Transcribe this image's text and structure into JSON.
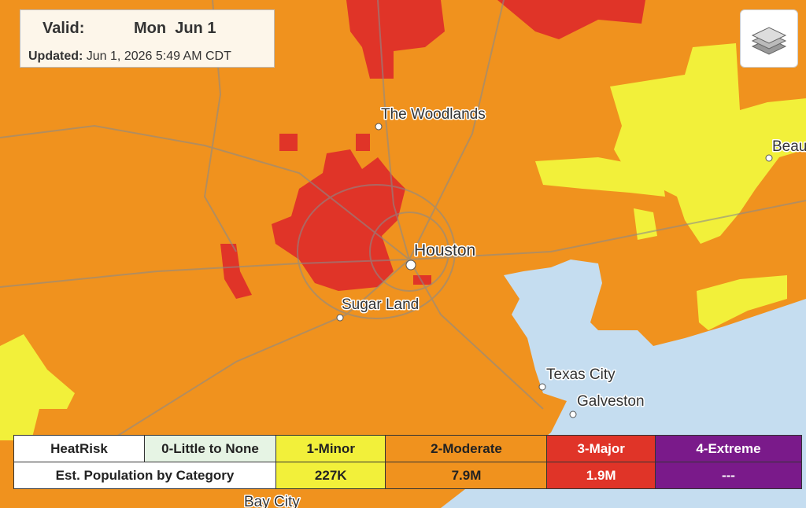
{
  "valid": {
    "label": "Valid:",
    "date": "Mon  Jun 1"
  },
  "updated": {
    "label": "Updated:",
    "text": "Jun 1, 2026 5:49 AM CDT"
  },
  "cities": [
    {
      "label": "The Woodlands"
    },
    {
      "label": "Houston"
    },
    {
      "label": "Sugar Land"
    },
    {
      "label": "Texas City"
    },
    {
      "label": "Galveston"
    },
    {
      "label": "Beau"
    },
    {
      "label": "Bay City"
    }
  ],
  "legend": {
    "header": "HeatRisk",
    "row_label": "Est. Population by Category",
    "categories": [
      {
        "name": "0-Little to None",
        "population": null
      },
      {
        "name": "1-Minor",
        "population": "227K"
      },
      {
        "name": "2-Moderate",
        "population": "7.9M"
      },
      {
        "name": "3-Major",
        "population": "1.9M"
      },
      {
        "name": "4-Extreme",
        "population": "---"
      }
    ]
  }
}
